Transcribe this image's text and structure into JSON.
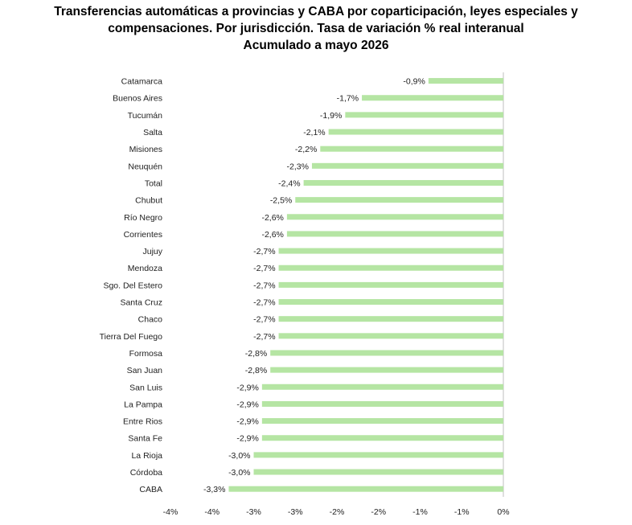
{
  "chart_data": {
    "type": "bar",
    "orientation": "horizontal",
    "title_lines": [
      "Transferencias automáticas a provincias y CABA por coparticipación, leyes especiales y",
      "compensaciones. Por jurisdicción. Tasa de variación % real interanual",
      "Acumulado a mayo 2026"
    ],
    "categories": [
      "Catamarca",
      "Buenos Aires",
      "Tucumán",
      "Salta",
      "Misiones",
      "Neuquén",
      "Total",
      "Chubut",
      "Río Negro",
      "Corrientes",
      "Jujuy",
      "Mendoza",
      "Sgo. Del Estero",
      "Santa Cruz",
      "Chaco",
      "Tierra Del Fuego",
      "Formosa",
      "San Juan",
      "San Luis",
      "La Pampa",
      "Entre Rios",
      "Santa Fe",
      "La Rioja",
      "Córdoba",
      "CABA"
    ],
    "values": [
      -0.9,
      -1.7,
      -1.9,
      -2.1,
      -2.2,
      -2.3,
      -2.4,
      -2.5,
      -2.6,
      -2.6,
      -2.7,
      -2.7,
      -2.7,
      -2.7,
      -2.7,
      -2.7,
      -2.8,
      -2.8,
      -2.9,
      -2.9,
      -2.9,
      -2.9,
      -3.0,
      -3.0,
      -3.3
    ],
    "value_labels": [
      "-0,9%",
      "-1,7%",
      "-1,9%",
      "-2,1%",
      "-2,2%",
      "-2,3%",
      "-2,4%",
      "-2,5%",
      "-2,6%",
      "-2,6%",
      "-2,7%",
      "-2,7%",
      "-2,7%",
      "-2,7%",
      "-2,7%",
      "-2,7%",
      "-2,8%",
      "-2,8%",
      "-2,9%",
      "-2,9%",
      "-2,9%",
      "-2,9%",
      "-3,0%",
      "-3,0%",
      "-3,3%"
    ],
    "x_ticks": [
      -4.0,
      -3.5,
      -3.0,
      -2.5,
      -2.0,
      -1.5,
      -1.0,
      -0.5,
      0.0
    ],
    "x_tick_labels": [
      "-4%",
      "-4%",
      "-3%",
      "-3%",
      "-2%",
      "-2%",
      "-1%",
      "-1%",
      "0%"
    ],
    "xlim": [
      -4.0,
      0.0
    ],
    "grid": false,
    "legend": "none",
    "bar_color": "#b5e5a3",
    "axis_color": "#bfbfbf"
  }
}
